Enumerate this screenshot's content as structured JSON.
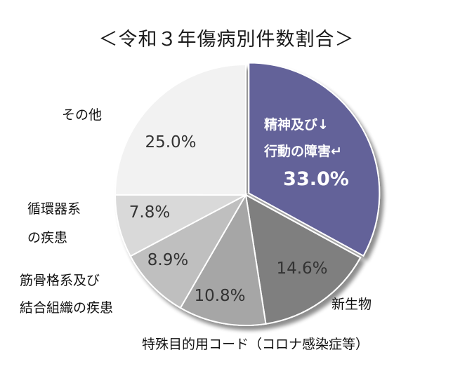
{
  "chart_data": {
    "type": "pie",
    "title": "＜令和３年傷病別件数割合＞",
    "start_angle_deg": 0,
    "direction": "clockwise",
    "slices": [
      {
        "label_lines": [
          "精神及び↓",
          "行動の障害↵"
        ],
        "value": 33.0,
        "value_label": "33.0%",
        "color": "#636299",
        "exploded": true
      },
      {
        "label_lines": [
          "新生物"
        ],
        "value": 14.6,
        "value_label": "14.6%",
        "color": "#7f7f7f"
      },
      {
        "label_lines": [
          "特殊目的用コード（コロナ感染症等）"
        ],
        "value": 10.8,
        "value_label": "10.8%",
        "color": "#a6a6a6"
      },
      {
        "label_lines": [
          "筋骨格系及び",
          "結合組織の疾患"
        ],
        "value": 8.9,
        "value_label": "8.9%",
        "color": "#bfbfbf"
      },
      {
        "label_lines": [
          "循環器系",
          "の疾患"
        ],
        "value": 7.8,
        "value_label": "7.8%",
        "color": "#d9d9d9"
      },
      {
        "label_lines": [
          "その他"
        ],
        "value": 25.0,
        "value_label": "25.0%",
        "color": "#f2f2f2"
      }
    ]
  }
}
